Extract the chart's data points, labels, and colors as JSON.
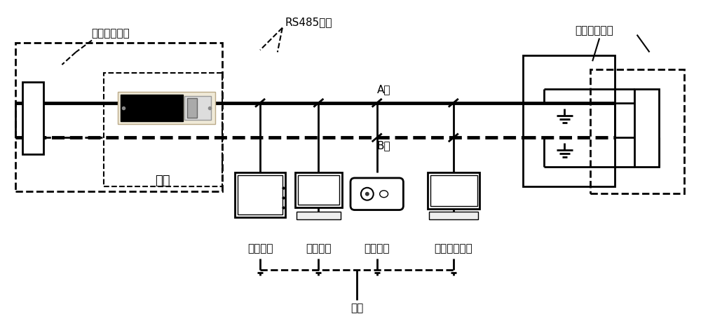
{
  "fig_width": 10.0,
  "fig_height": 4.48,
  "bg_color": "#ffffff",
  "line_color": "#000000",
  "label_zuoduan_kuang_left": "终端匹配电阵",
  "label_zuoduan_kuang_right": "终端匹配电阵",
  "label_rs485": "RS485总线",
  "label_A_line": "A线",
  "label_B_line": "B线",
  "label_zhuzhan": "主站",
  "label_congzhan": "从站",
  "label_device1": "智能电表",
  "label_device2": "远程终端",
  "label_device3": "智能开关",
  "label_device4": "末端监测设备",
  "font_size": 11
}
